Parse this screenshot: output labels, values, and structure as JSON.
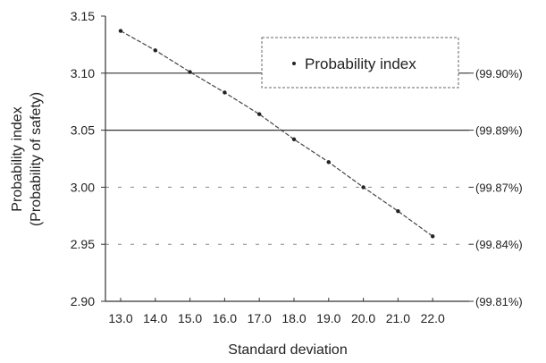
{
  "chart_data": {
    "type": "line",
    "title": "",
    "xlabel": "Standard deviation",
    "ylabel_line1": "Probability index",
    "ylabel_line2": "(Probability of safety)",
    "x": [
      13.0,
      14.0,
      15.0,
      16.0,
      17.0,
      18.0,
      19.0,
      20.0,
      21.0,
      22.0
    ],
    "x_tick_labels": [
      "13.0",
      "14.0",
      "15.0",
      "16.0",
      "17.0",
      "18.0",
      "19.0",
      "20.0",
      "21.0",
      "22.0"
    ],
    "series": [
      {
        "name": "Probability index",
        "values": [
          3.137,
          3.12,
          3.101,
          3.083,
          3.064,
          3.042,
          3.022,
          3.0,
          2.979,
          2.957
        ]
      }
    ],
    "ylim": [
      2.9,
      3.15
    ],
    "y_ticks": [
      2.9,
      2.95,
      3.0,
      3.05,
      3.1,
      3.15
    ],
    "y_tick_labels": [
      "2.90",
      "2.95",
      "3.00",
      "3.05",
      "3.10",
      "3.15"
    ],
    "safety_labels": [
      {
        "y": 3.1,
        "text": "(99.90%)"
      },
      {
        "y": 3.05,
        "text": "(99.89%)"
      },
      {
        "y": 3.0,
        "text": "(99.87%)"
      },
      {
        "y": 2.95,
        "text": "(99.84%)"
      },
      {
        "y": 2.9,
        "text": "(99.81%)"
      }
    ],
    "grid_solid": [
      3.1,
      3.05
    ],
    "grid_faint": [
      3.0,
      2.95
    ],
    "legend": {
      "placement": "top-right",
      "label": "Probability index"
    }
  }
}
